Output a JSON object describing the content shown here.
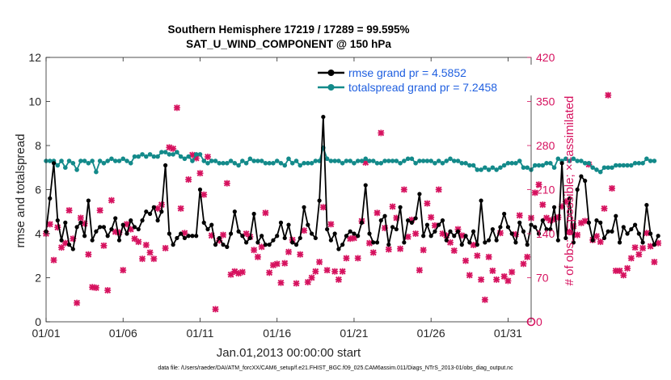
{
  "chart_data": {
    "type": "line",
    "title_line1": "Southern Hemisphere 17219 / 17289 = 99.595%",
    "title_line2": "SAT_U_WIND_COMPONENT @ 150 hPa",
    "xlabel": "Jan.01,2013 00:00:00 start",
    "ylabel_left": "rmse and totalspread",
    "ylabel_right": "# of obs: o=possible; ×=assimilated",
    "xlim": [
      0,
      31.5
    ],
    "ylim_left": [
      0,
      12
    ],
    "ylim_right": [
      0,
      420
    ],
    "x_ticks": [
      0,
      5,
      10,
      15,
      20,
      25,
      30
    ],
    "x_tick_labels": [
      "01/01",
      "01/06",
      "01/11",
      "01/16",
      "01/21",
      "01/26",
      "01/31"
    ],
    "y_ticks_left": [
      0,
      2,
      4,
      6,
      8,
      10,
      12
    ],
    "y_tick_labels_left": [
      "0",
      "2",
      "4",
      "6",
      "8",
      "10",
      "12"
    ],
    "y_ticks_right": [
      0,
      70,
      140,
      210,
      280,
      350,
      420
    ],
    "y_tick_labels_right": [
      "0",
      "70",
      "140",
      "210",
      "280",
      "350",
      "420"
    ],
    "legend": {
      "position": "top-right",
      "entries": [
        {
          "label": "rmse grand pr = 4.5852",
          "color": "#000000"
        },
        {
          "label": "totalspread grand pr = 7.2458",
          "color": "#138a8a"
        }
      ]
    },
    "colors": {
      "rmse": "#000000",
      "totalspread": "#138a8a",
      "obs_assimilated": "#d6125f",
      "obs_possible": "#d6125f",
      "legend_text": "#1f5fe0",
      "right_axis": "#d6125f"
    },
    "series": [
      {
        "name": "rmse",
        "step_days": 0.25,
        "values": [
          4.1,
          5.6,
          7.2,
          4.6,
          3.7,
          4.5,
          3.5,
          3.3,
          4.3,
          4.5,
          3.9,
          5.5,
          3.7,
          4.1,
          4.3,
          4.3,
          3.9,
          4.2,
          4.7,
          3.7,
          4.4,
          4.0,
          4.6,
          4.3,
          4.2,
          4.6,
          5.0,
          4.9,
          5.2,
          4.6,
          5.0,
          7.1,
          4.0,
          3.5,
          3.8,
          4.0,
          3.8,
          3.9,
          3.9,
          3.9,
          6.0,
          4.5,
          4.2,
          4.4,
          3.5,
          3.8,
          3.5,
          3.4,
          4.0,
          5.0,
          4.1,
          3.9,
          3.6,
          3.8,
          4.9,
          3.6,
          3.9,
          3.5,
          3.5,
          3.7,
          3.9,
          4.5,
          3.8,
          4.4,
          3.6,
          3.5,
          3.8,
          5.2,
          4.4,
          4.0,
          3.8,
          5.5,
          9.3,
          4.2,
          3.7,
          4.0,
          3.3,
          3.5,
          3.9,
          4.1,
          4.0,
          3.9,
          4.5,
          6.2,
          4.0,
          3.6,
          3.6,
          4.6,
          4.8,
          3.5,
          4.3,
          4.2,
          5.2,
          3.6,
          4.6,
          4.5,
          4.7,
          5.8,
          3.9,
          4.4,
          3.9,
          4.1,
          4.4,
          4.6,
          3.7,
          4.1,
          3.9,
          4.1,
          3.5,
          3.9,
          3.6,
          4.1,
          3.5,
          5.5,
          3.6,
          3.7,
          4.2,
          3.7,
          4.3,
          4.9,
          4.3,
          4.0,
          3.6,
          4.5,
          4.1,
          3.5,
          4.4,
          4.3,
          4.0,
          4.6,
          4.2,
          4.2,
          5.2,
          3.7,
          7.2,
          3.8,
          5.6,
          3.6,
          6.0,
          6.6,
          6.4,
          4.5,
          3.7,
          4.6,
          4.5,
          3.8,
          4.1,
          4.1,
          4.8,
          3.6,
          4.3,
          4.0,
          4.2,
          4.4,
          4.0,
          3.6,
          5.3,
          4.0,
          3.5,
          3.9
        ]
      },
      {
        "name": "totalspread",
        "step_days": 0.25,
        "values": [
          7.3,
          7.3,
          7.3,
          7.1,
          7.3,
          7.0,
          7.3,
          7.2,
          6.9,
          7.3,
          7.3,
          7.2,
          7.3,
          6.8,
          7.3,
          7.2,
          7.3,
          7.4,
          7.3,
          7.3,
          7.4,
          7.3,
          7.2,
          7.5,
          7.5,
          7.6,
          7.5,
          7.6,
          7.5,
          7.5,
          7.7,
          7.7,
          7.6,
          7.6,
          7.7,
          7.5,
          7.4,
          7.5,
          7.3,
          7.6,
          7.6,
          7.3,
          7.2,
          7.3,
          7.3,
          7.2,
          7.2,
          7.2,
          7.3,
          7.2,
          7.1,
          7.3,
          7.2,
          7.4,
          7.3,
          7.3,
          7.3,
          7.2,
          7.2,
          7.2,
          7.3,
          7.2,
          7.1,
          7.4,
          7.2,
          7.3,
          7.1,
          7.2,
          7.2,
          7.2,
          7.3,
          7.3,
          7.9,
          7.4,
          7.3,
          7.3,
          7.3,
          7.2,
          7.3,
          7.3,
          7.2,
          7.3,
          7.3,
          7.4,
          7.3,
          7.3,
          7.2,
          7.2,
          7.3,
          7.3,
          7.3,
          7.3,
          7.2,
          7.3,
          7.4,
          7.4,
          7.2,
          7.3,
          7.3,
          7.3,
          7.3,
          7.2,
          7.3,
          7.2,
          7.3,
          7.4,
          7.3,
          7.3,
          7.2,
          7.2,
          7.1,
          7.1,
          6.9,
          6.9,
          7.0,
          6.9,
          7.0,
          6.9,
          7.0,
          7.1,
          7.2,
          7.2,
          7.2,
          7.3,
          7.0,
          7.0,
          6.9,
          7.1,
          7.1,
          7.1,
          7.2,
          7.2,
          7.0,
          7.4,
          7.3,
          7.4,
          7.3,
          7.4,
          7.3,
          7.3,
          7.2,
          7.2,
          7.0,
          6.9,
          6.8,
          7.0,
          7.0,
          7.0,
          7.1,
          7.1,
          7.1,
          7.1,
          7.1,
          7.2,
          7.2,
          7.2,
          7.4,
          7.3,
          7.3
        ]
      },
      {
        "name": "obs_assimilated",
        "axis": "right",
        "step_days": 0.25,
        "values": [
          140,
          155,
          98,
          150,
          118,
          125,
          177,
          132,
          30,
          165,
          156,
          107,
          55,
          54,
          177,
          121,
          50,
          193,
          143,
          142,
          82,
          155,
          147,
          132,
          127,
          100,
          122,
          110,
          100,
          180,
          186,
          117,
          277,
          275,
          340,
          180,
          141,
          226,
          265,
          260,
          236,
          202,
          262,
          137,
          20,
          129,
          138,
          220,
          75,
          80,
          77,
          79,
          140,
          135,
          114,
          103,
          119,
          173,
          78,
          90,
          92,
          62,
          93,
          111,
          130,
          61,
          107,
          145,
          63,
          70,
          80,
          95,
          182,
          82,
          155,
          80,
          67,
          80,
          101,
          132,
          133,
          101,
          160,
          253,
          125,
          110,
          173,
          300,
          149,
          115,
          183,
          165,
          116,
          210,
          135,
          162,
          140,
          82,
          114,
          188,
          166,
          153,
          210,
          140,
          137,
          126,
          113,
          147,
          137,
          97,
          74,
          122,
          105,
          67,
          35,
          103,
          81,
          67,
          141,
          72,
          65,
          79,
          139,
          169,
          92,
          103,
          165,
          205,
          218,
          186,
          165,
          161,
          163,
          166,
          183,
          191,
          143,
          152,
          138,
          157,
          160,
          250,
          130,
          136,
          127,
          180,
          360,
          212,
          81,
          81,
          74,
          85,
          101,
          118,
          107,
          117,
          141,
          120,
          95,
          125
        ]
      }
    ]
  },
  "footer": "data file: /Users/raeder/DAI/ATM_forcXX/CAM6_setup/f.e21.FHIST_BGC.f09_025.CAM6assim.011/Diags_NTrS_2013-01/obs_diag_output.nc"
}
